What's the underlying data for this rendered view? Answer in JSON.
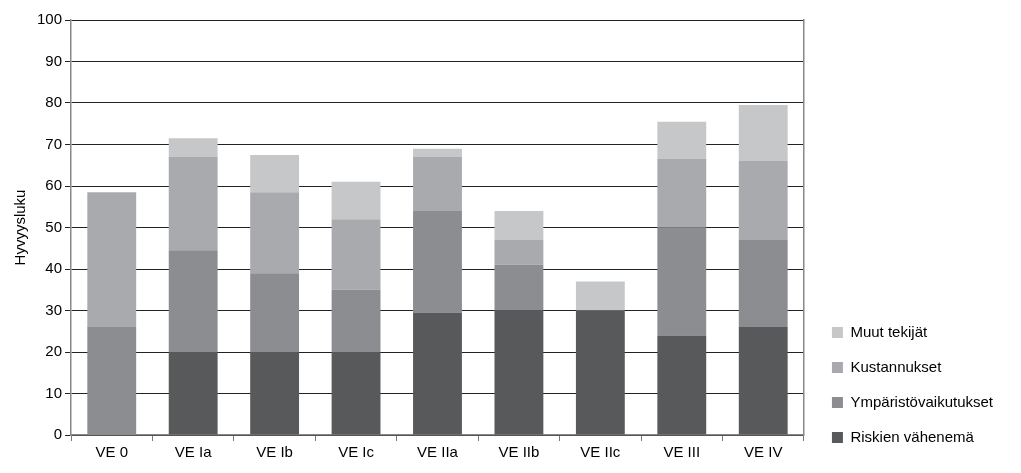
{
  "chart_data": {
    "type": "bar",
    "ylabel": "Hyvyysluku",
    "stacked": true,
    "categories": [
      "VE 0",
      "VE Ia",
      "VE Ib",
      "VE Ic",
      "VE IIa",
      "VE IIb",
      "VE IIc",
      "VE III",
      "VE IV"
    ],
    "series": [
      {
        "name": "Riskien vähenemä",
        "color": "#58595b",
        "values": [
          0,
          20,
          20,
          20,
          29.5,
          30,
          30,
          24,
          26
        ]
      },
      {
        "name": "Ympäristövaikutukset",
        "color": "#8c8d91",
        "values": [
          26,
          24.5,
          19,
          15,
          24.5,
          11,
          0,
          26,
          21
        ]
      },
      {
        "name": "Kustannukset",
        "color": "#a9aaad",
        "values": [
          32.5,
          22.5,
          19.5,
          17,
          13,
          6,
          0,
          16.5,
          19
        ]
      },
      {
        "name": "Muut tekijät",
        "color": "#c6c7c9",
        "values": [
          0,
          4.5,
          9,
          9,
          2,
          7,
          7,
          9,
          13.5
        ]
      }
    ],
    "ylim": [
      0,
      100
    ],
    "yticks": [
      0,
      10,
      20,
      30,
      40,
      50,
      60,
      70,
      80,
      90,
      100
    ],
    "grid": "y",
    "legend": "right"
  }
}
